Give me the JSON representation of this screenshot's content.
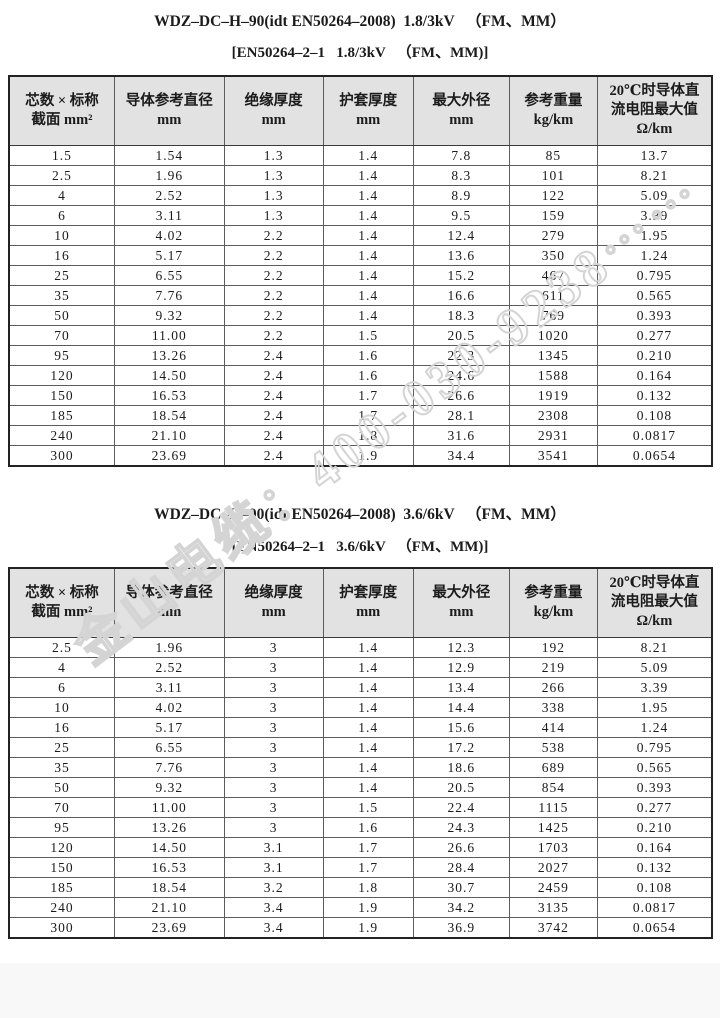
{
  "watermark": {
    "text": "金山电缆：400-030-9238⋯⋯",
    "color": "#d4d4d4"
  },
  "colors": {
    "header_bg": "#e2e2e2",
    "outer_border": "#222222",
    "inner_border": "#5c5c5c",
    "text": "#1b1b1b",
    "footer_bg": "#f8f8f8"
  },
  "sections": [
    {
      "title": "WDZ–DC–H–90(idt EN50264–2008)  1.8/3kV   （FM、MM）",
      "subtitle": "[EN50264–2–1   1.8/3kV   （FM、MM)]",
      "table": {
        "col_headers": [
          [
            "芯数 × 标称",
            "截面 mm²"
          ],
          [
            "导体参考直径",
            "mm"
          ],
          [
            "绝缘厚度",
            "mm"
          ],
          [
            "护套厚度",
            "mm"
          ],
          [
            "最大外径",
            "mm"
          ],
          [
            "参考重量",
            "kg/km"
          ],
          [
            "20℃时导体直",
            "流电阻最大值",
            "Ω/km"
          ]
        ],
        "rows": [
          [
            "1.5",
            "1.54",
            "1.3",
            "1.4",
            "7.8",
            "85",
            "13.7"
          ],
          [
            "2.5",
            "1.96",
            "1.3",
            "1.4",
            "8.3",
            "101",
            "8.21"
          ],
          [
            "4",
            "2.52",
            "1.3",
            "1.4",
            "8.9",
            "122",
            "5.09"
          ],
          [
            "6",
            "3.11",
            "1.3",
            "1.4",
            "9.5",
            "159",
            "3.39"
          ],
          [
            "10",
            "4.02",
            "2.2",
            "1.4",
            "12.4",
            "279",
            "1.95"
          ],
          [
            "16",
            "5.17",
            "2.2",
            "1.4",
            "13.6",
            "350",
            "1.24"
          ],
          [
            "25",
            "6.55",
            "2.2",
            "1.4",
            "15.2",
            "467",
            "0.795"
          ],
          [
            "35",
            "7.76",
            "2.2",
            "1.4",
            "16.6",
            "611",
            "0.565"
          ],
          [
            "50",
            "9.32",
            "2.2",
            "1.4",
            "18.3",
            "769",
            "0.393"
          ],
          [
            "70",
            "11.00",
            "2.2",
            "1.5",
            "20.5",
            "1020",
            "0.277"
          ],
          [
            "95",
            "13.26",
            "2.4",
            "1.6",
            "22.3",
            "1345",
            "0.210"
          ],
          [
            "120",
            "14.50",
            "2.4",
            "1.6",
            "24.6",
            "1588",
            "0.164"
          ],
          [
            "150",
            "16.53",
            "2.4",
            "1.7",
            "26.6",
            "1919",
            "0.132"
          ],
          [
            "185",
            "18.54",
            "2.4",
            "1.7",
            "28.1",
            "2308",
            "0.108"
          ],
          [
            "240",
            "21.10",
            "2.4",
            "1.8",
            "31.6",
            "2931",
            "0.0817"
          ],
          [
            "300",
            "23.69",
            "2.4",
            "1.9",
            "34.4",
            "3541",
            "0.0654"
          ]
        ]
      }
    },
    {
      "title": "WDZ–DC–H–90(idt EN50264–2008)  3.6/6kV   （FM、MM）",
      "subtitle": "[EN50264–2–1   3.6/6kV   （FM、MM)]",
      "table": {
        "col_headers": [
          [
            "芯数 × 标称",
            "截面 mm²"
          ],
          [
            "导体参考直径",
            "mm"
          ],
          [
            "绝缘厚度",
            "mm"
          ],
          [
            "护套厚度",
            "mm"
          ],
          [
            "最大外径",
            "mm"
          ],
          [
            "参考重量",
            "kg/km"
          ],
          [
            "20℃时导体直",
            "流电阻最大值",
            "Ω/km"
          ]
        ],
        "rows": [
          [
            "2.5",
            "1.96",
            "3",
            "1.4",
            "12.3",
            "192",
            "8.21"
          ],
          [
            "4",
            "2.52",
            "3",
            "1.4",
            "12.9",
            "219",
            "5.09"
          ],
          [
            "6",
            "3.11",
            "3",
            "1.4",
            "13.4",
            "266",
            "3.39"
          ],
          [
            "10",
            "4.02",
            "3",
            "1.4",
            "14.4",
            "338",
            "1.95"
          ],
          [
            "16",
            "5.17",
            "3",
            "1.4",
            "15.6",
            "414",
            "1.24"
          ],
          [
            "25",
            "6.55",
            "3",
            "1.4",
            "17.2",
            "538",
            "0.795"
          ],
          [
            "35",
            "7.76",
            "3",
            "1.4",
            "18.6",
            "689",
            "0.565"
          ],
          [
            "50",
            "9.32",
            "3",
            "1.4",
            "20.5",
            "854",
            "0.393"
          ],
          [
            "70",
            "11.00",
            "3",
            "1.5",
            "22.4",
            "1115",
            "0.277"
          ],
          [
            "95",
            "13.26",
            "3",
            "1.6",
            "24.3",
            "1425",
            "0.210"
          ],
          [
            "120",
            "14.50",
            "3.1",
            "1.7",
            "26.6",
            "1703",
            "0.164"
          ],
          [
            "150",
            "16.53",
            "3.1",
            "1.7",
            "28.4",
            "2027",
            "0.132"
          ],
          [
            "185",
            "18.54",
            "3.2",
            "1.8",
            "30.7",
            "2459",
            "0.108"
          ],
          [
            "240",
            "21.10",
            "3.4",
            "1.9",
            "34.2",
            "3135",
            "0.0817"
          ],
          [
            "300",
            "23.69",
            "3.4",
            "1.9",
            "36.9",
            "3742",
            "0.0654"
          ]
        ]
      }
    }
  ]
}
